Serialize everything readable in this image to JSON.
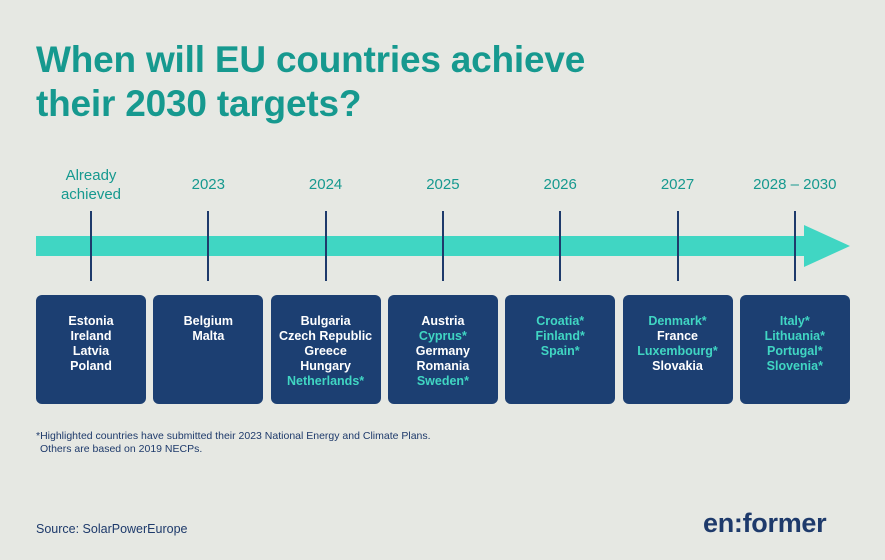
{
  "title": {
    "line1": "When will EU countries achieve",
    "line2": "their 2030 targets?"
  },
  "timeline": [
    {
      "label_line1": "Already",
      "label_line2": "achieved",
      "countries": [
        {
          "name": "Estonia",
          "highlighted": false
        },
        {
          "name": "Ireland",
          "highlighted": false
        },
        {
          "name": "Latvia",
          "highlighted": false
        },
        {
          "name": "Poland",
          "highlighted": false
        }
      ]
    },
    {
      "label": "2023",
      "countries": [
        {
          "name": "Belgium",
          "highlighted": false
        },
        {
          "name": "Malta",
          "highlighted": false
        }
      ]
    },
    {
      "label": "2024",
      "countries": [
        {
          "name": "Bulgaria",
          "highlighted": false
        },
        {
          "name": "Czech Republic",
          "highlighted": false
        },
        {
          "name": "Greece",
          "highlighted": false
        },
        {
          "name": "Hungary",
          "highlighted": false
        },
        {
          "name": "Netherlands*",
          "highlighted": true
        }
      ]
    },
    {
      "label": "2025",
      "countries": [
        {
          "name": "Austria",
          "highlighted": false
        },
        {
          "name": "Cyprus*",
          "highlighted": true
        },
        {
          "name": "Germany",
          "highlighted": false
        },
        {
          "name": "Romania",
          "highlighted": false
        },
        {
          "name": "Sweden*",
          "highlighted": true
        }
      ]
    },
    {
      "label": "2026",
      "countries": [
        {
          "name": "Croatia*",
          "highlighted": true
        },
        {
          "name": "Finland*",
          "highlighted": true
        },
        {
          "name": "Spain*",
          "highlighted": true
        }
      ]
    },
    {
      "label": "2027",
      "countries": [
        {
          "name": "Denmark*",
          "highlighted": true
        },
        {
          "name": "France",
          "highlighted": false
        },
        {
          "name": "Luxembourg*",
          "highlighted": true
        },
        {
          "name": "Slovakia",
          "highlighted": false
        }
      ]
    },
    {
      "label": "2028 – 2030",
      "countries": [
        {
          "name": "Italy*",
          "highlighted": true
        },
        {
          "name": "Lithuania*",
          "highlighted": true
        },
        {
          "name": "Portugal*",
          "highlighted": true
        },
        {
          "name": "Slovenia*",
          "highlighted": true
        }
      ]
    }
  ],
  "footnote": {
    "line1": "*Highlighted countries have submitted their 2023 National Energy and Climate Plans.",
    "line2": "Others are based on 2019 NECPs."
  },
  "source": "Source: SolarPowerEurope",
  "logo": "en:former",
  "colors": {
    "background": "#e6e8e3",
    "teal": "#16998f",
    "arrow": "#40d6c3",
    "box": "#1c3f72",
    "navy": "#1e3a6b"
  }
}
